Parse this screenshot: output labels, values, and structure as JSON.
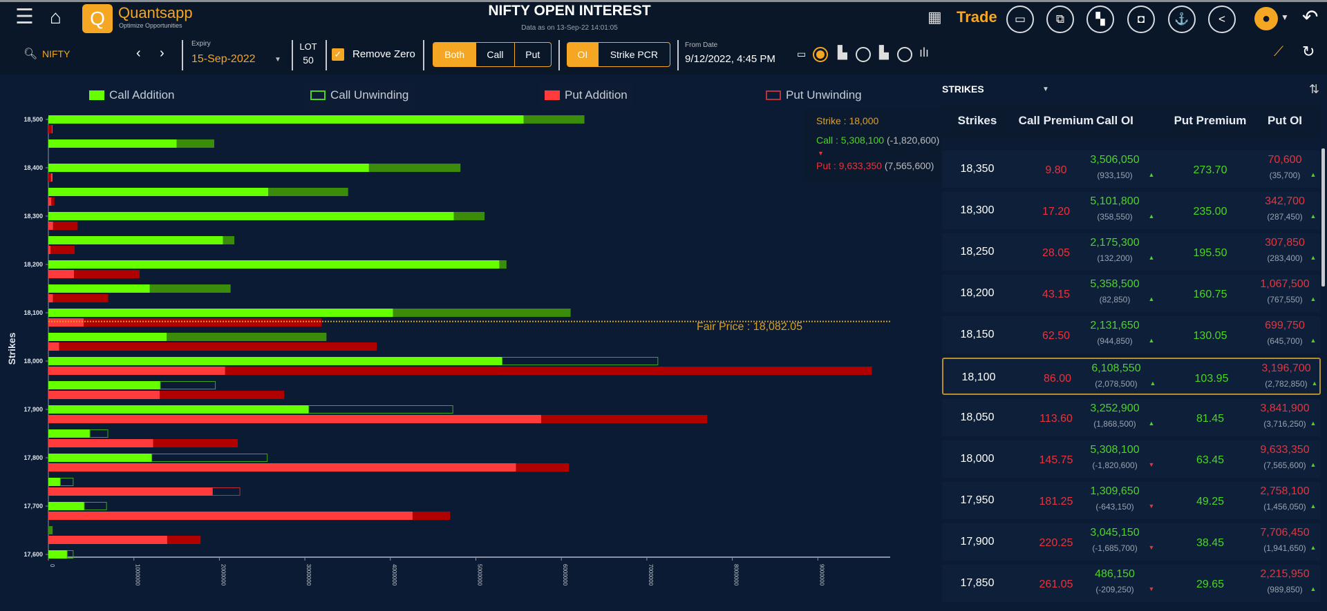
{
  "header": {
    "title": "NIFTY OPEN INTEREST",
    "subtitle": "Data as on 13-Sep-22 14:01:05",
    "brand": "Quantsapp",
    "tagline": "Optimize Opportunities",
    "trade_label": "Trade",
    "icons": [
      "menu-icon",
      "home-icon",
      "grid-icon",
      "folder-icon",
      "external-link-icon",
      "layout-icon",
      "video-icon",
      "basket-icon",
      "share-icon",
      "user-icon",
      "back-icon"
    ]
  },
  "toolbar": {
    "symbol": "NIFTY",
    "expiry_label": "Expiry",
    "expiry_value": "15-Sep-2022",
    "lot_label": "LOT",
    "lot_value": "50",
    "remove_zero_label": "Remove Zero",
    "remove_zero_checked": true,
    "option_types": [
      "Both",
      "Call",
      "Put"
    ],
    "option_type_selected": "Both",
    "modes": [
      "OI",
      "Strike PCR"
    ],
    "mode_selected": "OI",
    "from_date_label": "From Date",
    "from_date_value": "9/12/2022, 4:45 PM"
  },
  "legend": {
    "call_addition": "Call Addition",
    "call_unwinding": "Call Unwinding",
    "put_addition": "Put Addition",
    "put_unwinding": "Put Unwinding"
  },
  "colors": {
    "call_base": "#66ff00",
    "call_add": "#3a8c0a",
    "put_base": "#ff3b3b",
    "put_add": "#b00000",
    "accent": "#f5a623",
    "bg": "#0a1b33"
  },
  "tooltip": {
    "strike": "Strike : 18,000",
    "call": "Call : 5,308,100",
    "call_chg": "(-1,820,600)",
    "put": "Put : 9,633,350",
    "put_chg": "(7,565,600)"
  },
  "fair_price_label": "Fair Price : 18,082.05",
  "chart_data": {
    "type": "bar",
    "orientation": "horizontal",
    "ylabel": "Strikes",
    "xlim": [
      0,
      9800000
    ],
    "x_ticks": [
      "0",
      "1000000",
      "2000000",
      "3000000",
      "4000000",
      "5000000",
      "6000000",
      "7000000",
      "8000000",
      "9000000"
    ],
    "y_ticks": [
      "18,500",
      "18,400",
      "18,300",
      "18,200",
      "18,100",
      "18,000",
      "17,900",
      "17,800",
      "17,700",
      "17,600"
    ],
    "fair_price": 18082.05,
    "strikes": [
      {
        "strike": 18500,
        "call_oi": 6270000,
        "call_change": 710000,
        "put_oi": 40000,
        "put_change": 40000
      },
      {
        "strike": 18450,
        "call_oi": 1940000,
        "call_change": 440000,
        "put_oi": 0,
        "put_change": 0
      },
      {
        "strike": 18400,
        "call_oi": 4820000,
        "call_change": 1070000,
        "put_oi": 30000,
        "put_change": 30000
      },
      {
        "strike": 18350,
        "call_oi": 3506050,
        "call_change": 933150,
        "put_oi": 70600,
        "put_change": 35700
      },
      {
        "strike": 18300,
        "call_oi": 5101800,
        "call_change": 358550,
        "put_oi": 342700,
        "put_change": 287450
      },
      {
        "strike": 18250,
        "call_oi": 2175300,
        "call_change": 132200,
        "put_oi": 307850,
        "put_change": 283400
      },
      {
        "strike": 18200,
        "call_oi": 5358500,
        "call_change": 82850,
        "put_oi": 1067500,
        "put_change": 767550
      },
      {
        "strike": 18150,
        "call_oi": 2131650,
        "call_change": 944850,
        "put_oi": 699750,
        "put_change": 645700
      },
      {
        "strike": 18100,
        "call_oi": 6108550,
        "call_change": 2078500,
        "put_oi": 3196700,
        "put_change": 2782850
      },
      {
        "strike": 18050,
        "call_oi": 3252900,
        "call_change": 1868500,
        "put_oi": 3841900,
        "put_change": 3716250
      },
      {
        "strike": 18000,
        "call_oi": 5308100,
        "call_change": -1820600,
        "put_oi": 9633350,
        "put_change": 7565600
      },
      {
        "strike": 17950,
        "call_oi": 1309650,
        "call_change": -643150,
        "put_oi": 2758100,
        "put_change": 1456050
      },
      {
        "strike": 17900,
        "call_oi": 3045150,
        "call_change": -1685700,
        "put_oi": 7706450,
        "put_change": 1941650
      },
      {
        "strike": 17850,
        "call_oi": 486150,
        "call_change": -209250,
        "put_oi": 2215950,
        "put_change": 989850
      },
      {
        "strike": 17800,
        "call_oi": 1210000,
        "call_change": -1350000,
        "put_oi": 6090000,
        "put_change": 620000
      },
      {
        "strike": 17750,
        "call_oi": 140000,
        "call_change": -150000,
        "put_oi": 1920000,
        "put_change": -320000
      },
      {
        "strike": 17700,
        "call_oi": 420000,
        "call_change": -260000,
        "put_oi": 4700000,
        "put_change": 440000
      },
      {
        "strike": 17650,
        "call_oi": 50000,
        "call_change": 50000,
        "put_oi": 1780000,
        "put_change": 390000
      },
      {
        "strike": 17600,
        "call_oi": 220000,
        "call_change": -70000,
        "put_oi": 0,
        "put_change": 0
      }
    ]
  },
  "table": {
    "dropdown_label": "STRIKES",
    "columns": [
      "Strikes",
      "Call Premium",
      "Call OI",
      "Put Premium",
      "Put OI"
    ],
    "highlighted_strike": "18,100",
    "rows": [
      {
        "strike": "18,350",
        "call_prem": "9.80",
        "call_oi": "3,506,050",
        "call_chg": "(933,150)",
        "call_up": true,
        "put_prem": "273.70",
        "put_oi": "70,600",
        "put_chg": "(35,700)",
        "put_up": true
      },
      {
        "strike": "18,300",
        "call_prem": "17.20",
        "call_oi": "5,101,800",
        "call_chg": "(358,550)",
        "call_up": true,
        "put_prem": "235.00",
        "put_oi": "342,700",
        "put_chg": "(287,450)",
        "put_up": true
      },
      {
        "strike": "18,250",
        "call_prem": "28.05",
        "call_oi": "2,175,300",
        "call_chg": "(132,200)",
        "call_up": true,
        "put_prem": "195.50",
        "put_oi": "307,850",
        "put_chg": "(283,400)",
        "put_up": true
      },
      {
        "strike": "18,200",
        "call_prem": "43.15",
        "call_oi": "5,358,500",
        "call_chg": "(82,850)",
        "call_up": true,
        "put_prem": "160.75",
        "put_oi": "1,067,500",
        "put_chg": "(767,550)",
        "put_up": true
      },
      {
        "strike": "18,150",
        "call_prem": "62.50",
        "call_oi": "2,131,650",
        "call_chg": "(944,850)",
        "call_up": true,
        "put_prem": "130.05",
        "put_oi": "699,750",
        "put_chg": "(645,700)",
        "put_up": true
      },
      {
        "strike": "18,100",
        "call_prem": "86.00",
        "call_oi": "6,108,550",
        "call_chg": "(2,078,500)",
        "call_up": true,
        "put_prem": "103.95",
        "put_oi": "3,196,700",
        "put_chg": "(2,782,850)",
        "put_up": true
      },
      {
        "strike": "18,050",
        "call_prem": "113.60",
        "call_oi": "3,252,900",
        "call_chg": "(1,868,500)",
        "call_up": true,
        "put_prem": "81.45",
        "put_oi": "3,841,900",
        "put_chg": "(3,716,250)",
        "put_up": true
      },
      {
        "strike": "18,000",
        "call_prem": "145.75",
        "call_oi": "5,308,100",
        "call_chg": "(-1,820,600)",
        "call_up": false,
        "put_prem": "63.45",
        "put_oi": "9,633,350",
        "put_chg": "(7,565,600)",
        "put_up": true
      },
      {
        "strike": "17,950",
        "call_prem": "181.25",
        "call_oi": "1,309,650",
        "call_chg": "(-643,150)",
        "call_up": false,
        "put_prem": "49.25",
        "put_oi": "2,758,100",
        "put_chg": "(1,456,050)",
        "put_up": true
      },
      {
        "strike": "17,900",
        "call_prem": "220.25",
        "call_oi": "3,045,150",
        "call_chg": "(-1,685,700)",
        "call_up": false,
        "put_prem": "38.45",
        "put_oi": "7,706,450",
        "put_chg": "(1,941,650)",
        "put_up": true
      },
      {
        "strike": "17,850",
        "call_prem": "261.05",
        "call_oi": "486,150",
        "call_chg": "(-209,250)",
        "call_up": false,
        "put_prem": "29.65",
        "put_oi": "2,215,950",
        "put_chg": "(989,850)",
        "put_up": true
      }
    ]
  }
}
